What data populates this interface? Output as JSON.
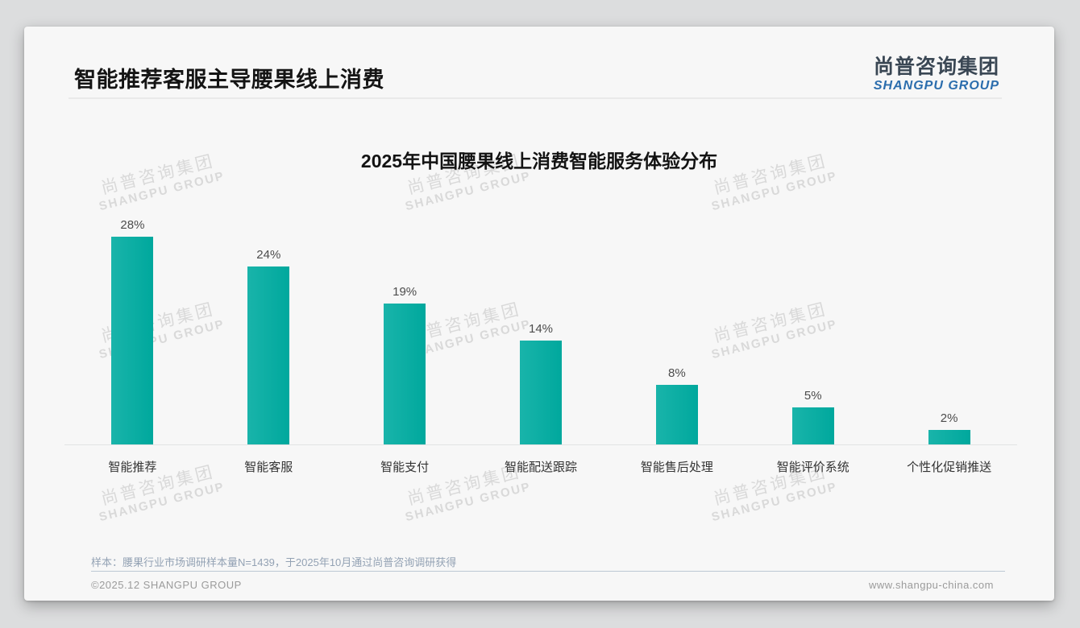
{
  "header": {
    "title": "智能推荐客服主导腰果线上消费"
  },
  "logo": {
    "cn": "尚普咨询集团",
    "en": "SHANGPU GROUP"
  },
  "chart_data": {
    "type": "bar",
    "title": "2025年中国腰果线上消费智能服务体验分布",
    "categories": [
      "智能推荐",
      "智能客服",
      "智能支付",
      "智能配送跟踪",
      "智能售后处理",
      "智能评价系统",
      "个性化促销推送"
    ],
    "values": [
      28,
      24,
      19,
      14,
      8,
      5,
      2
    ],
    "value_labels": [
      "28%",
      "24%",
      "19%",
      "14%",
      "8%",
      "5%",
      "2%"
    ],
    "unit": "%",
    "ylim": [
      0,
      30
    ],
    "grid": false,
    "legend": false,
    "bar_color": "#0cb0a5"
  },
  "watermark": {
    "cn": "尚普咨询集团",
    "en": "SHANGPU GROUP"
  },
  "footnote": "样本：腰果行业市场调研样本量N=1439，于2025年10月通过尚普咨询调研获得",
  "footer": {
    "left": "©2025.12 SHANGPU GROUP",
    "right": "www.shangpu-china.com"
  },
  "colors": {
    "bar_teal": "#0cb0a5",
    "title_text": "#141414",
    "logo_cn": "#3a4754",
    "logo_en": "#2b6dad",
    "footnote_text": "#93a2b4",
    "footer_text": "#9b9b9b",
    "watermark": "#d9d9d9",
    "card_bg": "#f7f7f7",
    "page_bg": "#dcddde"
  }
}
